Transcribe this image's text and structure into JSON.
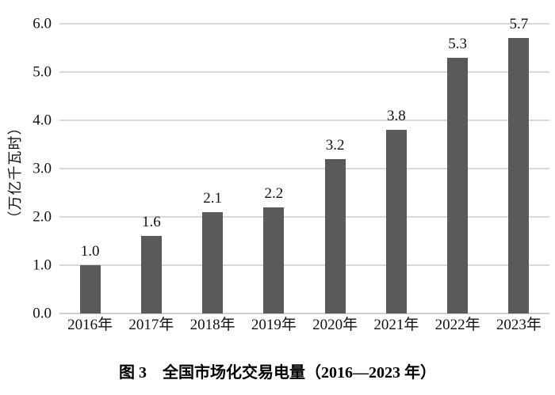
{
  "caption": "图 3　全国市场化交易电量（2016—2023 年）",
  "chart_data": {
    "type": "bar",
    "title": "图 3　全国市场化交易电量（2016—2023 年）",
    "categories": [
      "2016年",
      "2017年",
      "2018年",
      "2019年",
      "2020年",
      "2021年",
      "2022年",
      "2023年"
    ],
    "values": [
      1.0,
      1.6,
      2.1,
      2.2,
      3.2,
      3.8,
      5.3,
      5.7
    ],
    "value_labels": [
      "1.0",
      "1.6",
      "2.1",
      "2.2",
      "3.2",
      "3.8",
      "5.3",
      "5.7"
    ],
    "xlabel": "",
    "ylabel": "（万亿千瓦时）",
    "ylim": [
      0,
      6.0
    ],
    "yticks": [
      0,
      1,
      2,
      3,
      4,
      5,
      6
    ],
    "ytick_labels": [
      "0.0",
      "1.0",
      "2.0",
      "3.0",
      "4.0",
      "5.0",
      "6.0"
    ],
    "grid": true,
    "legend_position": "none",
    "bar_color": "#5a5a5a",
    "grid_color": "#d9d9d9",
    "baseline_color": "#cfcfcf"
  }
}
